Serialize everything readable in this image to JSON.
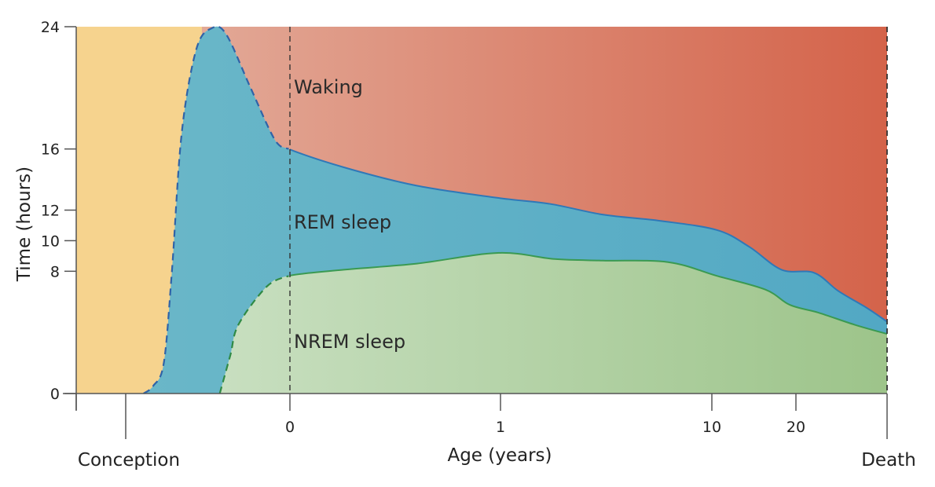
{
  "chart_data": {
    "type": "area",
    "title": "",
    "xlabel": "Age (years)",
    "ylabel": "Time (hours)",
    "ylim": [
      0,
      24
    ],
    "y_ticks": [
      "0",
      "8",
      "10",
      "12",
      "16",
      "24"
    ],
    "x_ticks": [
      "0",
      "1",
      "10",
      "20"
    ],
    "x_markers": [
      "Conception",
      "Death"
    ],
    "region_labels": {
      "waking": "Waking",
      "rem": "REM sleep",
      "nrem": "NREM sleep"
    },
    "series": [
      {
        "name": "REM sleep",
        "comment_units": "top boundary of total sleep (hours), x = fraction along age axis from left edge (0) to death (1)",
        "points": [
          [
            0.083,
            0.0
          ],
          [
            0.095,
            0.5
          ],
          [
            0.108,
            2.0
          ],
          [
            0.118,
            8.0
          ],
          [
            0.13,
            17.0
          ],
          [
            0.148,
            22.5
          ],
          [
            0.167,
            24.0
          ],
          [
            0.185,
            23.5
          ],
          [
            0.215,
            20.0
          ],
          [
            0.245,
            16.6
          ],
          [
            0.262,
            16.0
          ],
          [
            0.33,
            14.8
          ],
          [
            0.42,
            13.6
          ],
          [
            0.52,
            12.8
          ],
          [
            0.585,
            12.4
          ],
          [
            0.65,
            11.7
          ],
          [
            0.72,
            11.3
          ],
          [
            0.79,
            10.7
          ],
          [
            0.83,
            9.6
          ],
          [
            0.87,
            8.1
          ],
          [
            0.91,
            7.9
          ],
          [
            0.94,
            6.7
          ],
          [
            0.975,
            5.6
          ],
          [
            1.0,
            4.7
          ]
        ]
      },
      {
        "name": "NREM sleep",
        "comment_units": "top boundary of NREM sleep (hours)",
        "points": [
          [
            0.177,
            0.0
          ],
          [
            0.19,
            2.5
          ],
          [
            0.2,
            4.5
          ],
          [
            0.235,
            7.0
          ],
          [
            0.262,
            7.7
          ],
          [
            0.33,
            8.1
          ],
          [
            0.42,
            8.5
          ],
          [
            0.52,
            9.2
          ],
          [
            0.59,
            8.8
          ],
          [
            0.65,
            8.7
          ],
          [
            0.73,
            8.6
          ],
          [
            0.79,
            7.7
          ],
          [
            0.85,
            6.8
          ],
          [
            0.88,
            5.8
          ],
          [
            0.915,
            5.3
          ],
          [
            0.96,
            4.5
          ],
          [
            1.0,
            3.9
          ]
        ]
      }
    ],
    "colors": {
      "prenatal": "#f6d38e",
      "waking_start": "#e2a896",
      "waking_end": "#d4634a",
      "rem": "#6ab7c8",
      "rem_line": "#2f78b8",
      "nrem_start": "#c8dfc0",
      "nrem_end": "#9dc48a",
      "nrem_line": "#3a9a52",
      "axis": "#555555"
    }
  }
}
